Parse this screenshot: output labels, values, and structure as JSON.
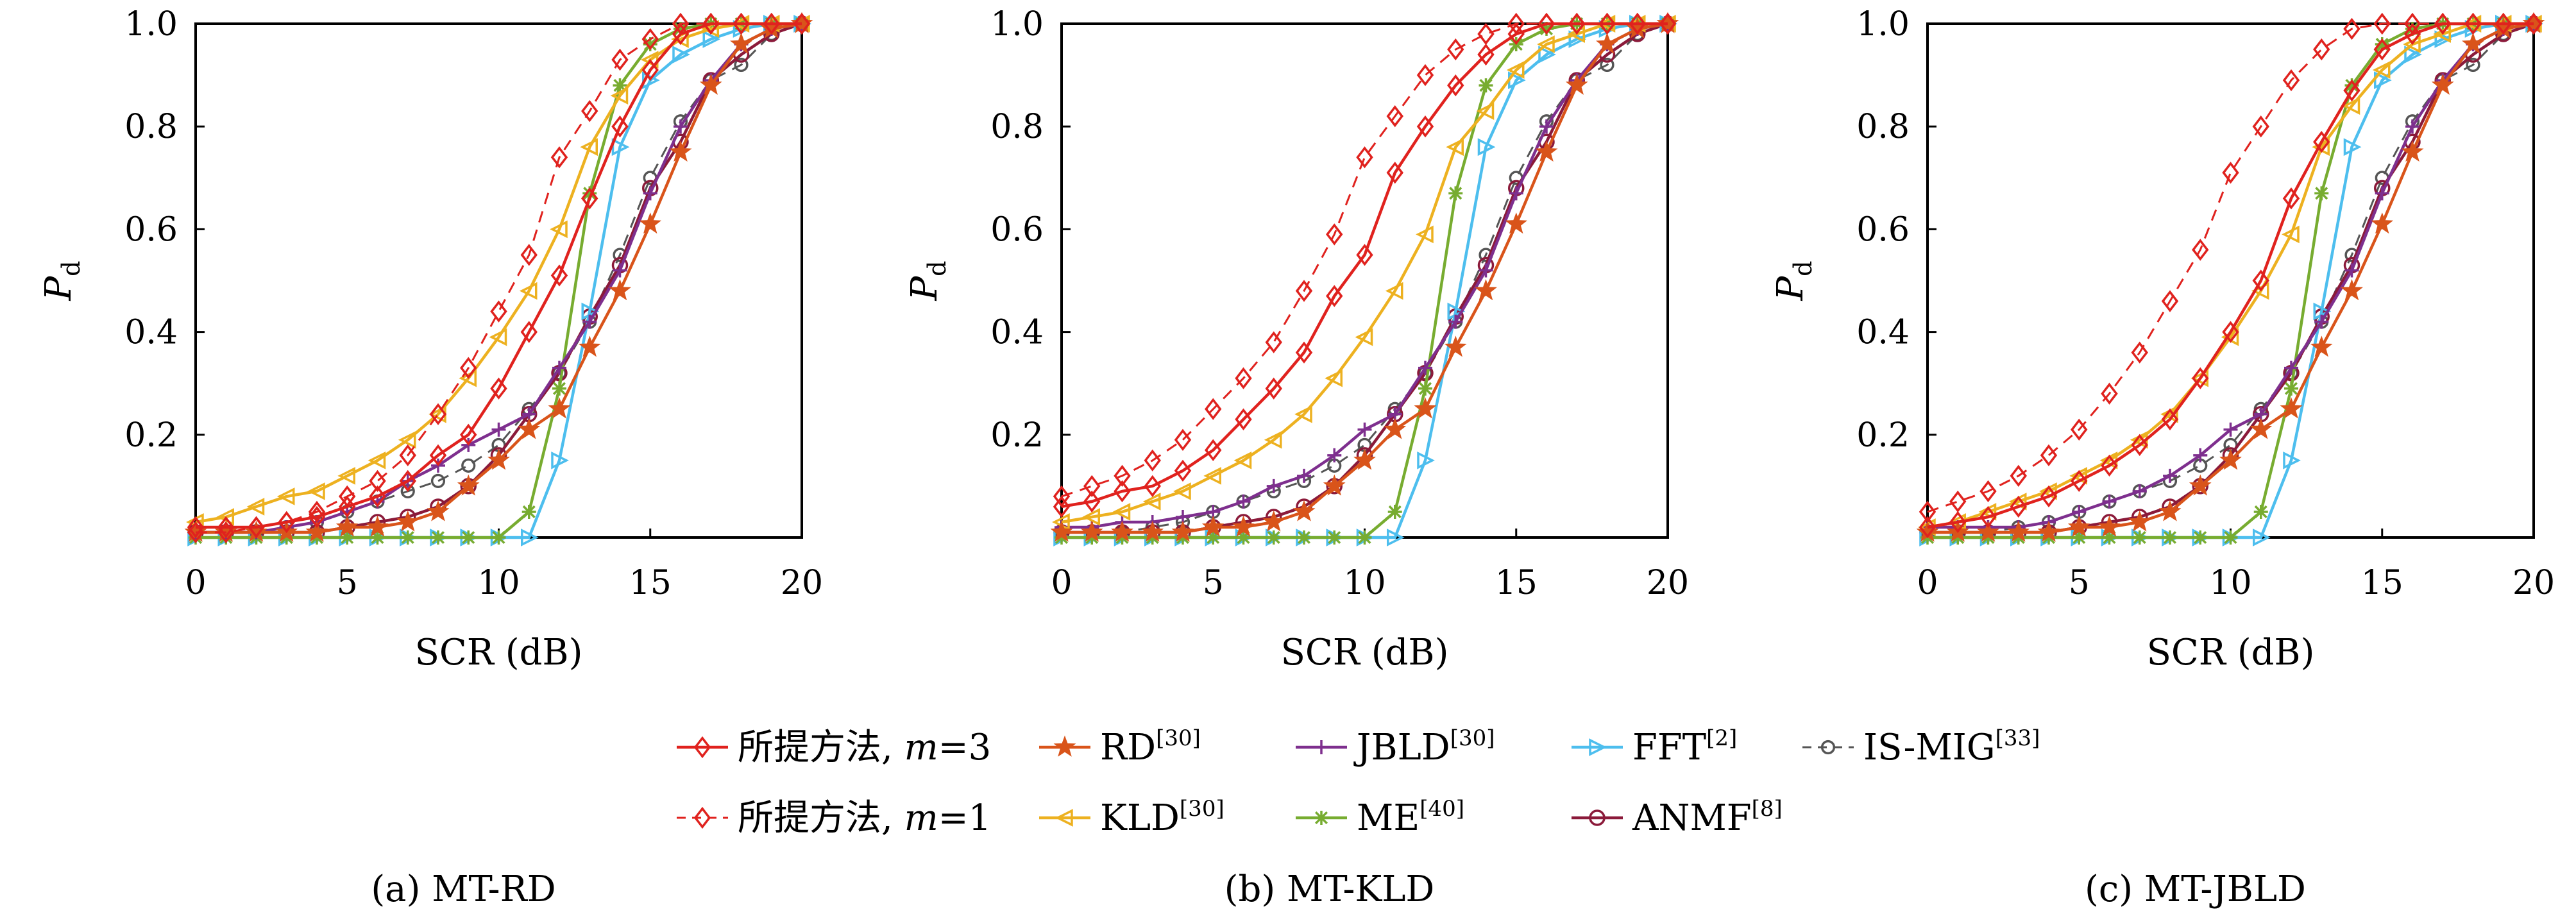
{
  "chart_data": [
    {
      "type": "line",
      "caption": "(a) MT-RD",
      "xlabel": "SCR (dB)",
      "ylabel": "P_d",
      "xlim": [
        0,
        20
      ],
      "ylim": [
        0,
        1
      ],
      "xticks": [
        "0",
        "5",
        "10",
        "15",
        "20"
      ],
      "yticks": [
        "0.2",
        "0.4",
        "0.6",
        "0.8",
        "1.0"
      ],
      "x": [
        0,
        1,
        2,
        3,
        4,
        5,
        6,
        7,
        8,
        9,
        10,
        11,
        12,
        13,
        14,
        15,
        16,
        17,
        18,
        19,
        20
      ],
      "series": [
        {
          "key": "prop3",
          "values": [
            0.02,
            0.02,
            0.02,
            0.03,
            0.04,
            0.06,
            0.08,
            0.11,
            0.16,
            0.2,
            0.29,
            0.4,
            0.51,
            0.66,
            0.8,
            0.91,
            0.98,
            1.0,
            1.0,
            1.0,
            1.0
          ]
        },
        {
          "key": "prop1",
          "values": [
            0.01,
            0.01,
            0.02,
            0.03,
            0.05,
            0.08,
            0.11,
            0.16,
            0.24,
            0.33,
            0.44,
            0.55,
            0.74,
            0.83,
            0.93,
            0.97,
            1.0,
            1.0,
            1.0,
            1.0,
            1.0
          ]
        },
        {
          "key": "rd",
          "values": [
            0.01,
            0.01,
            0.01,
            0.01,
            0.01,
            0.02,
            0.02,
            0.03,
            0.05,
            0.1,
            0.15,
            0.21,
            0.25,
            0.37,
            0.48,
            0.61,
            0.75,
            0.88,
            0.96,
            0.99,
            1.0
          ]
        },
        {
          "key": "kld",
          "values": [
            0.03,
            0.04,
            0.06,
            0.08,
            0.09,
            0.12,
            0.15,
            0.19,
            0.24,
            0.31,
            0.39,
            0.48,
            0.6,
            0.76,
            0.86,
            0.93,
            0.97,
            0.99,
            1.0,
            1.0,
            1.0
          ]
        },
        {
          "key": "jbld",
          "values": [
            0.01,
            0.01,
            0.01,
            0.02,
            0.03,
            0.05,
            0.07,
            0.11,
            0.14,
            0.18,
            0.21,
            0.24,
            0.33,
            0.42,
            0.52,
            0.67,
            0.8,
            0.89,
            0.96,
            0.99,
            1.0
          ]
        },
        {
          "key": "me",
          "values": [
            0.0,
            0.0,
            0.0,
            0.0,
            0.0,
            0.0,
            0.0,
            0.0,
            0.0,
            0.0,
            0.0,
            0.05,
            0.29,
            0.67,
            0.88,
            0.96,
            0.99,
            1.0,
            1.0,
            1.0,
            1.0
          ]
        },
        {
          "key": "fft",
          "values": [
            0.0,
            0.0,
            0.0,
            0.0,
            0.0,
            0.0,
            0.0,
            0.0,
            0.0,
            0.0,
            0.0,
            0.0,
            0.15,
            0.44,
            0.76,
            0.89,
            0.94,
            0.97,
            0.99,
            1.0,
            1.0
          ]
        },
        {
          "key": "anmf",
          "values": [
            0.01,
            0.01,
            0.01,
            0.01,
            0.01,
            0.02,
            0.03,
            0.04,
            0.06,
            0.1,
            0.16,
            0.24,
            0.32,
            0.43,
            0.53,
            0.68,
            0.77,
            0.89,
            0.94,
            0.98,
            1.0
          ]
        },
        {
          "key": "ismig",
          "values": [
            0.01,
            0.01,
            0.01,
            0.02,
            0.03,
            0.05,
            0.07,
            0.09,
            0.11,
            0.14,
            0.18,
            0.25,
            0.32,
            0.42,
            0.55,
            0.7,
            0.81,
            0.89,
            0.92,
            0.98,
            1.0
          ]
        }
      ]
    },
    {
      "type": "line",
      "caption": "(b) MT-KLD",
      "xlabel": "SCR (dB)",
      "ylabel": "P_d",
      "xlim": [
        0,
        20
      ],
      "ylim": [
        0,
        1
      ],
      "xticks": [
        "0",
        "5",
        "10",
        "15",
        "20"
      ],
      "yticks": [
        "0.2",
        "0.4",
        "0.6",
        "0.8",
        "1.0"
      ],
      "x": [
        0,
        1,
        2,
        3,
        4,
        5,
        6,
        7,
        8,
        9,
        10,
        11,
        12,
        13,
        14,
        15,
        16,
        17,
        18,
        19,
        20
      ],
      "series": [
        {
          "key": "prop3",
          "values": [
            0.06,
            0.07,
            0.09,
            0.1,
            0.13,
            0.17,
            0.23,
            0.29,
            0.36,
            0.47,
            0.55,
            0.71,
            0.8,
            0.88,
            0.94,
            0.98,
            1.0,
            1.0,
            1.0,
            1.0,
            1.0
          ]
        },
        {
          "key": "prop1",
          "values": [
            0.08,
            0.1,
            0.12,
            0.15,
            0.19,
            0.25,
            0.31,
            0.38,
            0.48,
            0.59,
            0.74,
            0.82,
            0.9,
            0.95,
            0.98,
            1.0,
            1.0,
            1.0,
            1.0,
            1.0,
            1.0
          ]
        },
        {
          "key": "rd",
          "values": [
            0.01,
            0.01,
            0.01,
            0.01,
            0.01,
            0.02,
            0.02,
            0.03,
            0.05,
            0.1,
            0.15,
            0.21,
            0.25,
            0.37,
            0.48,
            0.61,
            0.75,
            0.88,
            0.96,
            0.99,
            1.0
          ]
        },
        {
          "key": "kld",
          "values": [
            0.03,
            0.04,
            0.05,
            0.07,
            0.09,
            0.12,
            0.15,
            0.19,
            0.24,
            0.31,
            0.39,
            0.48,
            0.59,
            0.76,
            0.83,
            0.91,
            0.96,
            0.98,
            1.0,
            1.0,
            1.0
          ]
        },
        {
          "key": "jbld",
          "values": [
            0.02,
            0.02,
            0.03,
            0.03,
            0.04,
            0.05,
            0.07,
            0.1,
            0.12,
            0.16,
            0.21,
            0.24,
            0.33,
            0.42,
            0.52,
            0.67,
            0.8,
            0.89,
            0.96,
            0.99,
            1.0
          ]
        },
        {
          "key": "me",
          "values": [
            0.0,
            0.0,
            0.0,
            0.0,
            0.0,
            0.0,
            0.0,
            0.0,
            0.0,
            0.0,
            0.0,
            0.05,
            0.29,
            0.67,
            0.88,
            0.96,
            0.99,
            1.0,
            1.0,
            1.0,
            1.0
          ]
        },
        {
          "key": "fft",
          "values": [
            0.0,
            0.0,
            0.0,
            0.0,
            0.0,
            0.0,
            0.0,
            0.0,
            0.0,
            0.0,
            0.0,
            0.0,
            0.15,
            0.44,
            0.76,
            0.89,
            0.94,
            0.97,
            0.99,
            1.0,
            1.0
          ]
        },
        {
          "key": "anmf",
          "values": [
            0.01,
            0.01,
            0.01,
            0.01,
            0.01,
            0.02,
            0.03,
            0.04,
            0.06,
            0.1,
            0.16,
            0.24,
            0.32,
            0.43,
            0.53,
            0.68,
            0.77,
            0.89,
            0.94,
            0.98,
            1.0
          ]
        },
        {
          "key": "ismig",
          "values": [
            0.01,
            0.01,
            0.01,
            0.02,
            0.03,
            0.05,
            0.07,
            0.09,
            0.11,
            0.14,
            0.18,
            0.25,
            0.32,
            0.42,
            0.55,
            0.7,
            0.81,
            0.89,
            0.92,
            0.98,
            1.0
          ]
        }
      ]
    },
    {
      "type": "line",
      "caption": "(c) MT-JBLD",
      "xlabel": "SCR (dB)",
      "ylabel": "P_d",
      "xlim": [
        0,
        20
      ],
      "ylim": [
        0,
        1
      ],
      "xticks": [
        "0",
        "5",
        "10",
        "15",
        "20"
      ],
      "yticks": [
        "0.2",
        "0.4",
        "0.6",
        "0.8",
        "1.0"
      ],
      "x": [
        0,
        1,
        2,
        3,
        4,
        5,
        6,
        7,
        8,
        9,
        10,
        11,
        12,
        13,
        14,
        15,
        16,
        17,
        18,
        19,
        20
      ],
      "series": [
        {
          "key": "prop3",
          "values": [
            0.02,
            0.03,
            0.04,
            0.06,
            0.08,
            0.11,
            0.14,
            0.18,
            0.23,
            0.31,
            0.4,
            0.5,
            0.66,
            0.77,
            0.87,
            0.95,
            0.98,
            1.0,
            1.0,
            1.0,
            1.0
          ]
        },
        {
          "key": "prop1",
          "values": [
            0.05,
            0.07,
            0.09,
            0.12,
            0.16,
            0.21,
            0.28,
            0.36,
            0.46,
            0.56,
            0.71,
            0.8,
            0.89,
            0.95,
            0.99,
            1.0,
            1.0,
            1.0,
            1.0,
            1.0,
            1.0
          ]
        },
        {
          "key": "rd",
          "values": [
            0.01,
            0.01,
            0.01,
            0.01,
            0.01,
            0.02,
            0.02,
            0.03,
            0.05,
            0.1,
            0.15,
            0.21,
            0.25,
            0.37,
            0.48,
            0.61,
            0.75,
            0.88,
            0.96,
            0.99,
            1.0
          ]
        },
        {
          "key": "kld",
          "values": [
            0.02,
            0.03,
            0.05,
            0.07,
            0.09,
            0.12,
            0.15,
            0.19,
            0.24,
            0.31,
            0.39,
            0.48,
            0.59,
            0.76,
            0.84,
            0.91,
            0.96,
            0.98,
            1.0,
            1.0,
            1.0
          ]
        },
        {
          "key": "jbld",
          "values": [
            0.02,
            0.02,
            0.02,
            0.02,
            0.03,
            0.05,
            0.07,
            0.09,
            0.12,
            0.16,
            0.21,
            0.24,
            0.33,
            0.42,
            0.52,
            0.67,
            0.8,
            0.89,
            0.96,
            0.99,
            1.0
          ]
        },
        {
          "key": "me",
          "values": [
            0.0,
            0.0,
            0.0,
            0.0,
            0.0,
            0.0,
            0.0,
            0.0,
            0.0,
            0.0,
            0.0,
            0.05,
            0.29,
            0.67,
            0.88,
            0.96,
            0.99,
            1.0,
            1.0,
            1.0,
            1.0
          ]
        },
        {
          "key": "fft",
          "values": [
            0.0,
            0.0,
            0.0,
            0.0,
            0.0,
            0.0,
            0.0,
            0.0,
            0.0,
            0.0,
            0.0,
            0.0,
            0.15,
            0.44,
            0.76,
            0.89,
            0.94,
            0.97,
            0.99,
            1.0,
            1.0
          ]
        },
        {
          "key": "anmf",
          "values": [
            0.01,
            0.01,
            0.01,
            0.01,
            0.01,
            0.02,
            0.03,
            0.04,
            0.06,
            0.1,
            0.16,
            0.24,
            0.32,
            0.43,
            0.53,
            0.68,
            0.77,
            0.89,
            0.94,
            0.98,
            1.0
          ]
        },
        {
          "key": "ismig",
          "values": [
            0.01,
            0.01,
            0.01,
            0.02,
            0.03,
            0.05,
            0.07,
            0.09,
            0.11,
            0.14,
            0.18,
            0.25,
            0.32,
            0.42,
            0.55,
            0.7,
            0.81,
            0.89,
            0.92,
            0.98,
            1.0
          ]
        }
      ]
    }
  ],
  "legend": [
    {
      "key": "prop3",
      "label": "所提方法, m=3",
      "sup": "",
      "color": "#e0221e",
      "marker": "diamond",
      "dashed": false
    },
    {
      "key": "rd",
      "label": "RD",
      "sup": "[30]",
      "color": "#d9541a",
      "marker": "star",
      "dashed": false
    },
    {
      "key": "jbld",
      "label": "JBLD",
      "sup": "[30]",
      "color": "#7e2f8e",
      "marker": "plus",
      "dashed": false
    },
    {
      "key": "fft",
      "label": "FFT",
      "sup": "[2]",
      "color": "#4dbeee",
      "marker": "triangle-right",
      "dashed": false
    },
    {
      "key": "ismig",
      "label": "IS-MIG",
      "sup": "[33]",
      "color": "#555555",
      "marker": "circle-small",
      "dashed": true
    },
    {
      "key": "prop1",
      "label": "所提方法, m=1",
      "sup": "",
      "color": "#e0221e",
      "marker": "diamond",
      "dashed": true
    },
    {
      "key": "kld",
      "label": "KLD",
      "sup": "[30]",
      "color": "#edb120",
      "marker": "triangle-left",
      "dashed": false
    },
    {
      "key": "me",
      "label": "ME",
      "sup": "[40]",
      "color": "#77ac30",
      "marker": "asterisk",
      "dashed": false
    },
    {
      "key": "anmf",
      "label": "ANMF",
      "sup": "[8]",
      "color": "#8b1a3a",
      "marker": "circle",
      "dashed": false
    }
  ]
}
